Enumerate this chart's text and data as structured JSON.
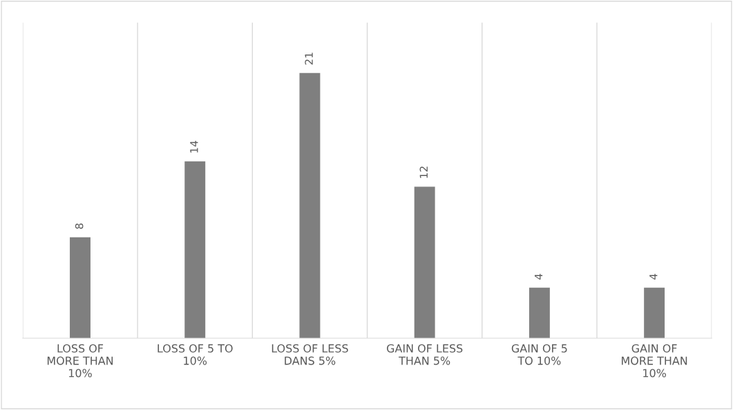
{
  "chart_data": {
    "type": "bar",
    "categories": [
      "LOSS OF\nMORE THAN\n10%",
      "LOSS OF 5 TO\n10%",
      "LOSS OF LESS\nDANS 5%",
      "GAIN OF LESS\nTHAN 5%",
      "GAIN OF 5\nTO 10%",
      "GAIN OF\nMORE THAN\n10%"
    ],
    "values": [
      8,
      14,
      21,
      12,
      4,
      4
    ],
    "color": "#7f7f7f",
    "data_labels": true,
    "grid": "x",
    "tick_labels": "x"
  }
}
